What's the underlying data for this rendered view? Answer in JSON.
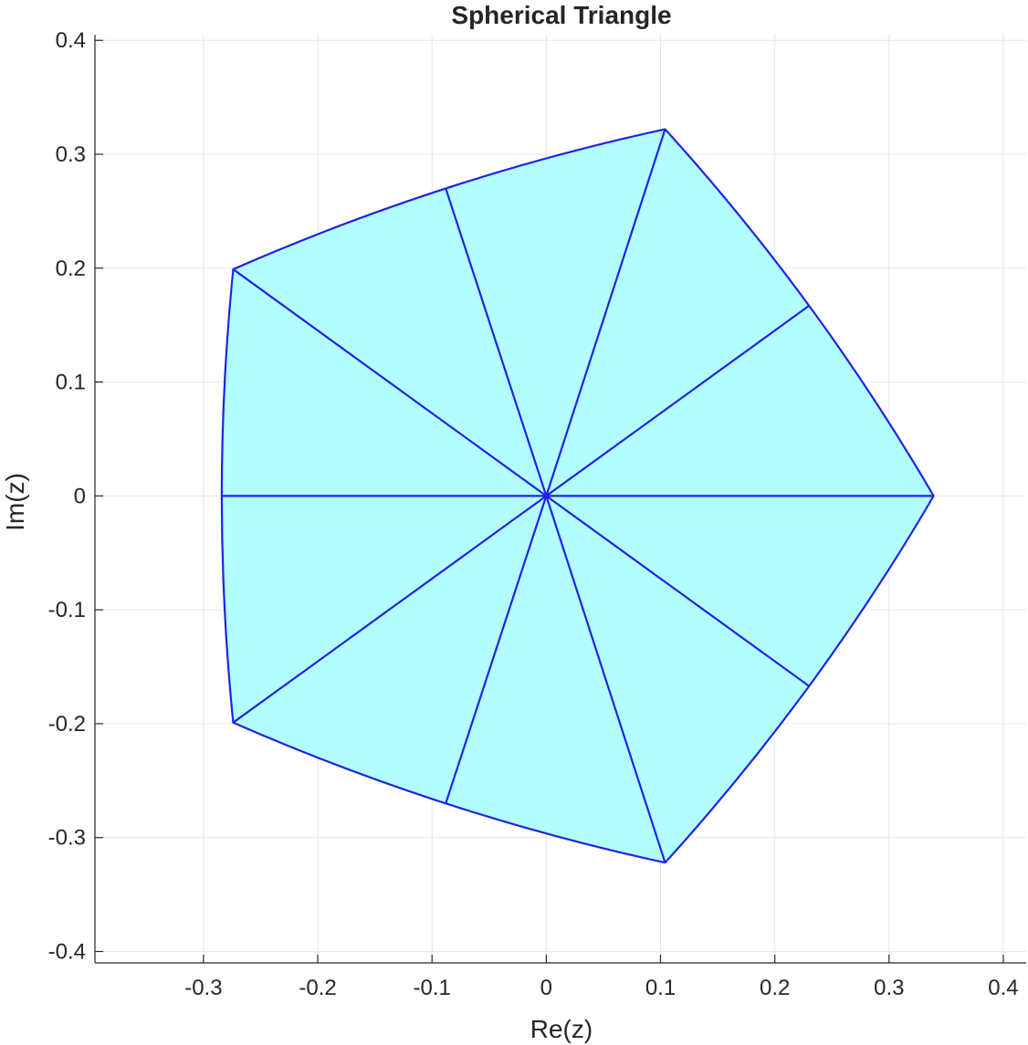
{
  "chart_data": {
    "type": "line",
    "title": "Spherical Triangle",
    "xlabel": "Re(z)",
    "ylabel": "Im(z)",
    "xlim": [
      -0.395,
      0.42
    ],
    "ylim": [
      -0.41,
      0.405
    ],
    "xticks": [
      -0.3,
      -0.2,
      -0.1,
      0,
      0.1,
      0.2,
      0.3,
      0.4
    ],
    "xtick_labels": [
      "-0.3",
      "-0.2",
      "-0.1",
      "0",
      "0.1",
      "0.2",
      "0.3",
      "0.4"
    ],
    "yticks": [
      -0.4,
      -0.3,
      -0.2,
      -0.1,
      0,
      0.1,
      0.2,
      0.3,
      0.4
    ],
    "ytick_labels": [
      "-0.4",
      "-0.3",
      "-0.2",
      "-0.1",
      "0",
      "0.1",
      "0.2",
      "0.3",
      "0.4"
    ],
    "grid": true,
    "fill_color": "#b3ffff",
    "line_color": "#1f23e6",
    "boundary": [
      [
        0.339,
        0.0
      ],
      [
        0.104,
        0.322
      ],
      [
        -0.274,
        0.199
      ],
      [
        -0.274,
        -0.199
      ],
      [
        0.104,
        -0.322
      ]
    ],
    "boundary_midpoints": [
      [
        0.23,
        0.167
      ],
      [
        -0.088,
        0.27
      ],
      [
        -0.284,
        0.0
      ],
      [
        -0.088,
        -0.27
      ],
      [
        0.23,
        -0.167
      ]
    ],
    "spokes": [
      [
        0.339,
        0.0
      ],
      [
        0.23,
        0.167
      ],
      [
        0.104,
        0.322
      ],
      [
        -0.088,
        0.27
      ],
      [
        -0.274,
        0.199
      ],
      [
        -0.284,
        0.0
      ],
      [
        -0.274,
        -0.199
      ],
      [
        -0.088,
        -0.27
      ],
      [
        0.104,
        -0.322
      ],
      [
        0.23,
        -0.167
      ]
    ]
  }
}
